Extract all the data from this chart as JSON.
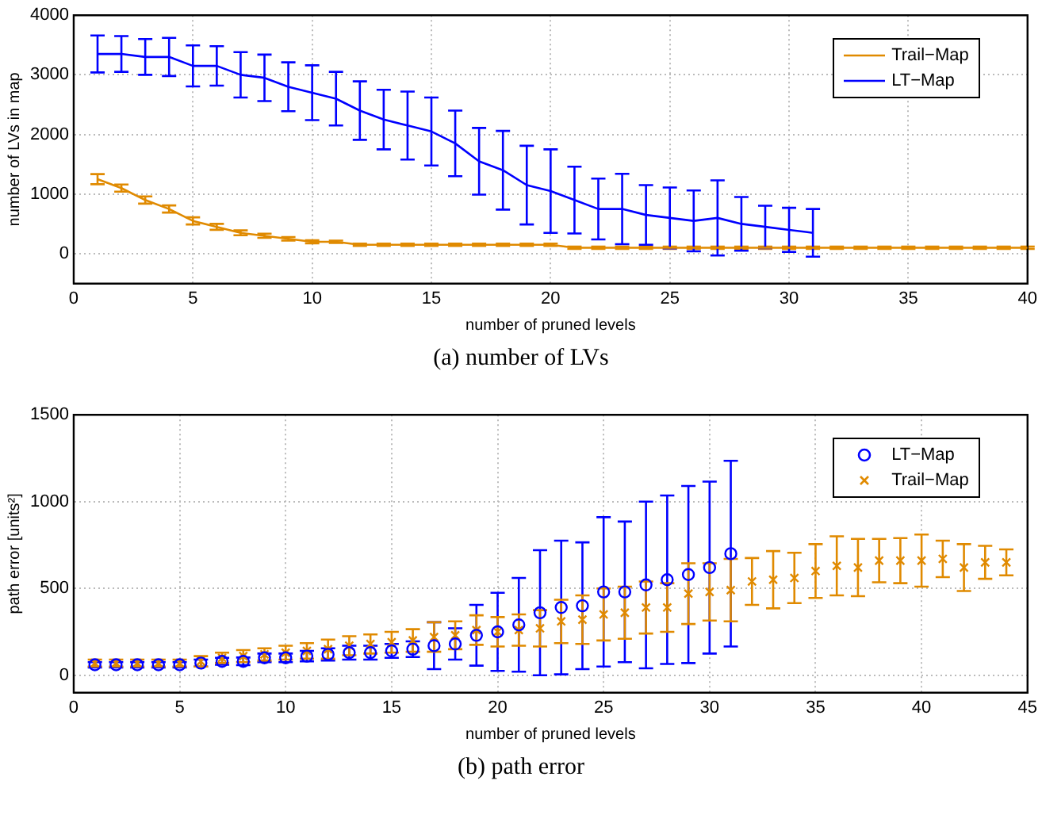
{
  "chart_data": [
    {
      "type": "line",
      "xlabel": "number of pruned levels",
      "ylabel": "number of LVs in map",
      "xlim": [
        0,
        40
      ],
      "xticks": [
        0,
        5,
        10,
        15,
        20,
        25,
        30,
        35,
        40
      ],
      "ylim": [
        -500,
        4000
      ],
      "yticks": [
        0,
        1000,
        2000,
        3000,
        4000
      ],
      "grid": true,
      "legend": "top right",
      "marker": "none",
      "annotations": [
        "(a)  number of LVs"
      ],
      "series": [
        {
          "name": "Trail−Map",
          "color": "#e08a00",
          "x": [
            1,
            2,
            3,
            4,
            5,
            6,
            7,
            8,
            9,
            10,
            11,
            12,
            13,
            14,
            15,
            16,
            17,
            18,
            19,
            20,
            21,
            22,
            23,
            24,
            25,
            26,
            27,
            28,
            29,
            30,
            31,
            32,
            33,
            34,
            35,
            36,
            37,
            38,
            39,
            40
          ],
          "values": [
            1250,
            1100,
            900,
            750,
            550,
            450,
            350,
            300,
            250,
            200,
            200,
            150,
            150,
            150,
            150,
            150,
            150,
            150,
            150,
            150,
            100,
            100,
            100,
            100,
            100,
            100,
            100,
            100,
            100,
            100,
            100,
            100,
            100,
            100,
            100,
            100,
            100,
            100,
            100,
            100
          ],
          "errors": [
            85,
            60,
            60,
            60,
            60,
            50,
            40,
            35,
            30,
            25,
            20,
            20,
            20,
            20,
            20,
            20,
            20,
            20,
            20,
            20,
            20,
            20,
            20,
            20,
            20,
            20,
            20,
            20,
            20,
            20,
            20,
            20,
            20,
            20,
            20,
            20,
            20,
            20,
            20,
            20
          ]
        },
        {
          "name": "LT−Map",
          "color": "#0000ff",
          "x": [
            1,
            2,
            3,
            4,
            5,
            6,
            7,
            8,
            9,
            10,
            11,
            12,
            13,
            14,
            15,
            16,
            17,
            18,
            19,
            20,
            21,
            22,
            23,
            24,
            25,
            26,
            27,
            28,
            29,
            30,
            31
          ],
          "values": [
            3350,
            3350,
            3300,
            3300,
            3150,
            3150,
            3000,
            2950,
            2800,
            2700,
            2600,
            2400,
            2250,
            2150,
            2050,
            1850,
            1550,
            1400,
            1150,
            1050,
            900,
            750,
            750,
            650,
            600,
            550,
            600,
            500,
            450,
            400,
            350
          ],
          "errors": [
            310,
            300,
            300,
            320,
            345,
            330,
            380,
            390,
            410,
            460,
            450,
            490,
            500,
            570,
            570,
            550,
            560,
            660,
            660,
            700,
            560,
            510,
            590,
            500,
            510,
            510,
            630,
            450,
            355,
            370,
            400
          ]
        }
      ]
    },
    {
      "type": "scatter",
      "xlabel": "number of pruned levels",
      "ylabel": "path error [units²]",
      "xlim": [
        0,
        45
      ],
      "xticks": [
        0,
        5,
        10,
        15,
        20,
        25,
        30,
        35,
        40,
        45
      ],
      "ylim": [
        -100,
        1500
      ],
      "yticks": [
        0,
        500,
        1000,
        1500
      ],
      "grid": true,
      "legend": "top right",
      "annotations": [
        "(b)  path error"
      ],
      "series": [
        {
          "name": "LT−Map",
          "color": "#0000ff",
          "marker": "circle",
          "x": [
            1,
            2,
            3,
            4,
            5,
            6,
            7,
            8,
            9,
            10,
            11,
            12,
            13,
            14,
            15,
            16,
            17,
            18,
            19,
            20,
            21,
            22,
            23,
            24,
            25,
            26,
            27,
            28,
            29,
            30,
            31
          ],
          "values": [
            60,
            60,
            60,
            60,
            60,
            70,
            80,
            80,
            100,
            100,
            110,
            120,
            130,
            130,
            140,
            150,
            170,
            180,
            230,
            250,
            290,
            360,
            390,
            400,
            480,
            480,
            520,
            550,
            580,
            620,
            700
          ],
          "errors": [
            15,
            15,
            15,
            15,
            15,
            20,
            20,
            22,
            25,
            25,
            30,
            35,
            40,
            40,
            40,
            45,
            135,
            90,
            175,
            225,
            270,
            360,
            385,
            365,
            430,
            405,
            480,
            485,
            510,
            495,
            535
          ]
        },
        {
          "name": "Trail−Map",
          "color": "#e08a00",
          "marker": "cross",
          "x": [
            1,
            2,
            3,
            4,
            5,
            6,
            7,
            8,
            9,
            10,
            11,
            12,
            13,
            14,
            15,
            16,
            17,
            18,
            19,
            20,
            21,
            22,
            23,
            24,
            25,
            26,
            27,
            28,
            29,
            30,
            31,
            32,
            33,
            34,
            35,
            36,
            37,
            38,
            39,
            40,
            41,
            42,
            43,
            44
          ],
          "values": [
            70,
            70,
            70,
            70,
            70,
            80,
            100,
            110,
            120,
            130,
            140,
            150,
            170,
            180,
            190,
            200,
            220,
            230,
            260,
            250,
            260,
            270,
            310,
            320,
            350,
            360,
            390,
            390,
            470,
            480,
            490,
            540,
            550,
            560,
            600,
            630,
            620,
            660,
            660,
            660,
            670,
            620,
            650,
            650
          ],
          "errors": [
            20,
            20,
            20,
            20,
            20,
            30,
            30,
            35,
            35,
            40,
            45,
            55,
            55,
            55,
            60,
            65,
            85,
            80,
            85,
            85,
            90,
            105,
            125,
            140,
            150,
            150,
            150,
            140,
            175,
            165,
            180,
            135,
            165,
            145,
            155,
            170,
            165,
            125,
            130,
            150,
            105,
            135,
            95,
            75
          ]
        }
      ]
    }
  ]
}
